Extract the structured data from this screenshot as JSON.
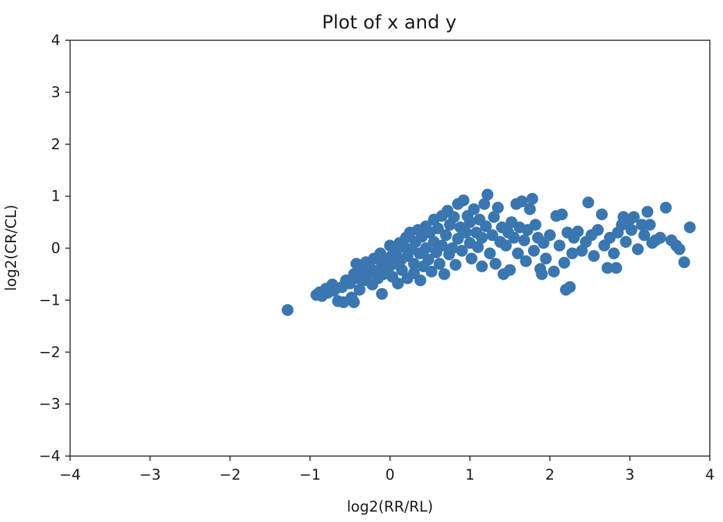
{
  "chart_data": {
    "type": "scatter",
    "title": "Plot of x and y",
    "xlabel": "log2(RR/RL)",
    "ylabel": "log2(CR/CL)",
    "xlim": [
      -4,
      4
    ],
    "ylim": [
      -4,
      4
    ],
    "xticks": [
      -4,
      -3,
      -2,
      -1,
      0,
      1,
      2,
      3,
      4
    ],
    "yticks": [
      -4,
      -3,
      -2,
      -1,
      0,
      1,
      2,
      3,
      4
    ],
    "xtick_labels": [
      "−4",
      "−3",
      "−2",
      "−1",
      "0",
      "1",
      "2",
      "3",
      "4"
    ],
    "ytick_labels": [
      "−4",
      "−3",
      "−2",
      "−1",
      "0",
      "1",
      "2",
      "3",
      "4"
    ],
    "grid": false,
    "marker_color": "#3a76b0",
    "series": [
      {
        "name": "",
        "points": [
          [
            -1.28,
            -1.19
          ],
          [
            -0.92,
            -0.9
          ],
          [
            -0.88,
            -0.85
          ],
          [
            -0.85,
            -0.92
          ],
          [
            -0.8,
            -0.78
          ],
          [
            -0.78,
            -0.86
          ],
          [
            -0.72,
            -0.7
          ],
          [
            -0.7,
            -0.82
          ],
          [
            -0.65,
            -1.02
          ],
          [
            -0.6,
            -0.75
          ],
          [
            -0.58,
            -1.04
          ],
          [
            -0.55,
            -0.62
          ],
          [
            -0.5,
            -0.68
          ],
          [
            -0.48,
            -0.95
          ],
          [
            -0.45,
            -0.5
          ],
          [
            -0.45,
            -1.04
          ],
          [
            -0.42,
            -0.3
          ],
          [
            -0.4,
            -0.58
          ],
          [
            -0.38,
            -0.8
          ],
          [
            -0.35,
            -0.42
          ],
          [
            -0.32,
            -0.62
          ],
          [
            -0.3,
            -0.27
          ],
          [
            -0.28,
            -0.5
          ],
          [
            -0.25,
            -0.36
          ],
          [
            -0.22,
            -0.7
          ],
          [
            -0.2,
            -0.2
          ],
          [
            -0.18,
            -0.44
          ],
          [
            -0.15,
            -0.58
          ],
          [
            -0.12,
            -0.1
          ],
          [
            -0.1,
            -0.3
          ],
          [
            -0.1,
            -0.88
          ],
          [
            -0.08,
            -0.5
          ],
          [
            -0.05,
            -0.2
          ],
          [
            -0.02,
            -0.38
          ],
          [
            0.0,
            0.05
          ],
          [
            0.02,
            -0.15
          ],
          [
            0.03,
            -0.55
          ],
          [
            0.05,
            -0.3
          ],
          [
            0.08,
            -0.05
          ],
          [
            0.1,
            -0.68
          ],
          [
            0.12,
            0.1
          ],
          [
            0.14,
            -0.22
          ],
          [
            0.15,
            -0.42
          ],
          [
            0.18,
            0.02
          ],
          [
            0.2,
            0.2
          ],
          [
            0.22,
            -0.15
          ],
          [
            0.22,
            -0.58
          ],
          [
            0.25,
            0.3
          ],
          [
            0.27,
            -0.02
          ],
          [
            0.3,
            -0.3
          ],
          [
            0.3,
            -0.48
          ],
          [
            0.32,
            0.12
          ],
          [
            0.35,
            0.35
          ],
          [
            0.37,
            -0.1
          ],
          [
            0.38,
            -0.62
          ],
          [
            0.4,
            0.22
          ],
          [
            0.42,
            -0.35
          ],
          [
            0.45,
            0.0
          ],
          [
            0.45,
            0.42
          ],
          [
            0.48,
            -0.22
          ],
          [
            0.5,
            0.3
          ],
          [
            0.52,
            -0.45
          ],
          [
            0.55,
            0.12
          ],
          [
            0.55,
            0.55
          ],
          [
            0.58,
            -0.08
          ],
          [
            0.6,
            0.38
          ],
          [
            0.62,
            -0.3
          ],
          [
            0.65,
            0.62
          ],
          [
            0.65,
            0.05
          ],
          [
            0.68,
            -0.5
          ],
          [
            0.7,
            0.25
          ],
          [
            0.72,
            0.72
          ],
          [
            0.74,
            -0.12
          ],
          [
            0.75,
            0.45
          ],
          [
            0.78,
            0.0
          ],
          [
            0.8,
            0.6
          ],
          [
            0.82,
            -0.32
          ],
          [
            0.85,
            0.18
          ],
          [
            0.85,
            0.85
          ],
          [
            0.88,
            0.4
          ],
          [
            0.9,
            -0.05
          ],
          [
            0.92,
            0.92
          ],
          [
            0.95,
            0.3
          ],
          [
            0.97,
            0.62
          ],
          [
            1.0,
            0.1
          ],
          [
            1.0,
            0.5
          ],
          [
            1.02,
            -0.2
          ],
          [
            1.05,
            0.75
          ],
          [
            1.08,
            0.3
          ],
          [
            1.1,
            0.02
          ],
          [
            1.12,
            0.55
          ],
          [
            1.15,
            -0.35
          ],
          [
            1.15,
            0.2
          ],
          [
            1.18,
            0.85
          ],
          [
            1.2,
            0.42
          ],
          [
            1.22,
            1.03
          ],
          [
            1.25,
            -0.1
          ],
          [
            1.28,
            0.25
          ],
          [
            1.3,
            0.6
          ],
          [
            1.32,
            -0.3
          ],
          [
            1.35,
            0.78
          ],
          [
            1.38,
            0.12
          ],
          [
            1.4,
            0.4
          ],
          [
            1.42,
            -0.5
          ],
          [
            1.45,
            0.05
          ],
          [
            1.48,
            0.3
          ],
          [
            1.5,
            -0.42
          ],
          [
            1.52,
            0.5
          ],
          [
            1.55,
            0.2
          ],
          [
            1.58,
            0.85
          ],
          [
            1.6,
            -0.1
          ],
          [
            1.62,
            0.4
          ],
          [
            1.65,
            0.9
          ],
          [
            1.68,
            0.15
          ],
          [
            1.7,
            -0.25
          ],
          [
            1.72,
            0.35
          ],
          [
            1.75,
            0.75
          ],
          [
            1.78,
            0.95
          ],
          [
            1.8,
            -0.05
          ],
          [
            1.82,
            0.45
          ],
          [
            1.85,
            0.2
          ],
          [
            1.88,
            -0.4
          ],
          [
            1.9,
            -0.5
          ],
          [
            1.92,
            0.1
          ],
          [
            1.95,
            -0.2
          ],
          [
            2.0,
            0.25
          ],
          [
            2.05,
            -0.45
          ],
          [
            2.08,
            0.62
          ],
          [
            2.12,
            0.05
          ],
          [
            2.15,
            0.65
          ],
          [
            2.18,
            -0.28
          ],
          [
            2.2,
            -0.8
          ],
          [
            2.22,
            0.3
          ],
          [
            2.25,
            -0.75
          ],
          [
            2.28,
            -0.1
          ],
          [
            2.3,
            0.2
          ],
          [
            2.35,
            0.32
          ],
          [
            2.4,
            -0.05
          ],
          [
            2.45,
            0.12
          ],
          [
            2.48,
            0.88
          ],
          [
            2.52,
            0.25
          ],
          [
            2.55,
            -0.15
          ],
          [
            2.6,
            0.35
          ],
          [
            2.65,
            0.65
          ],
          [
            2.68,
            0.05
          ],
          [
            2.72,
            -0.38
          ],
          [
            2.75,
            0.2
          ],
          [
            2.8,
            -0.1
          ],
          [
            2.83,
            -0.38
          ],
          [
            2.85,
            0.3
          ],
          [
            2.9,
            0.45
          ],
          [
            2.92,
            0.6
          ],
          [
            2.95,
            0.12
          ],
          [
            3.0,
            0.55
          ],
          [
            3.02,
            0.35
          ],
          [
            3.05,
            0.6
          ],
          [
            3.1,
            -0.02
          ],
          [
            3.15,
            0.45
          ],
          [
            3.18,
            0.25
          ],
          [
            3.22,
            0.7
          ],
          [
            3.25,
            0.45
          ],
          [
            3.28,
            0.1
          ],
          [
            3.32,
            0.15
          ],
          [
            3.38,
            0.2
          ],
          [
            3.45,
            0.78
          ],
          [
            3.52,
            0.15
          ],
          [
            3.58,
            0.05
          ],
          [
            3.62,
            -0.02
          ],
          [
            3.68,
            -0.27
          ],
          [
            3.75,
            0.4
          ]
        ]
      }
    ]
  }
}
